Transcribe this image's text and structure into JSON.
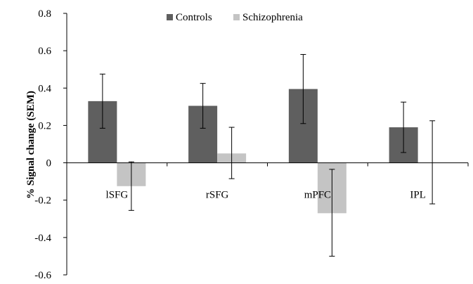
{
  "chart_data": {
    "type": "bar",
    "categories": [
      "lSFG",
      "rSFG",
      "mPFC",
      "IPL"
    ],
    "series": [
      {
        "name": "Controls",
        "color": "#5f5f5f",
        "values": [
          0.33,
          0.305,
          0.395,
          0.19
        ],
        "err_low": [
          0.185,
          0.185,
          0.21,
          0.055
        ],
        "err_high": [
          0.475,
          0.425,
          0.58,
          0.325
        ]
      },
      {
        "name": "Schizophrenia",
        "color": "#c4c4c4",
        "values": [
          -0.125,
          0.05,
          -0.27,
          0.0
        ],
        "err_low": [
          -0.255,
          -0.085,
          -0.5,
          -0.22
        ],
        "err_high": [
          0.005,
          0.19,
          -0.035,
          0.225
        ]
      }
    ],
    "title": "",
    "xlabel": "",
    "ylabel": "% Signal change (SEM)",
    "ylim": [
      -0.6,
      0.8
    ],
    "yticks": [
      "0.8",
      "0.6",
      "0.4",
      "0.2",
      "0",
      "-0.2",
      "-0.4",
      "-0.6"
    ],
    "ytick_values": [
      0.8,
      0.6,
      0.4,
      0.2,
      0,
      -0.2,
      -0.4,
      -0.6
    ],
    "legend_position": "top-center",
    "grid": false
  }
}
